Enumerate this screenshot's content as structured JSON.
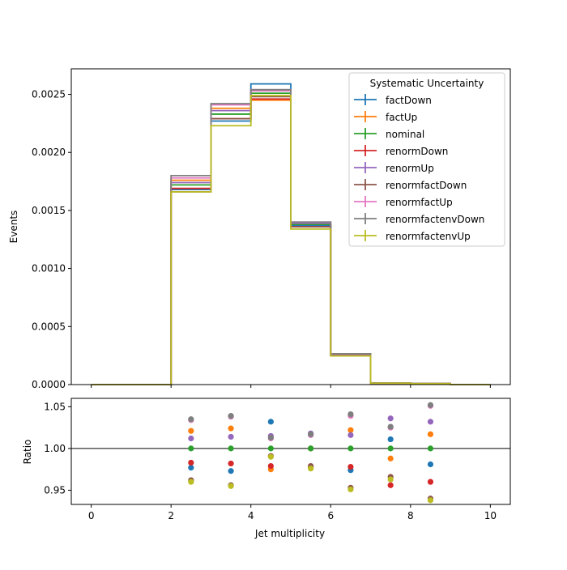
{
  "chart_data": [
    {
      "type": "line",
      "subtype": "step-histogram",
      "title": "",
      "xlabel": "",
      "ylabel": "Events",
      "xlim": [
        -0.5,
        10.5
      ],
      "ylim": [
        0,
        0.00272
      ],
      "yticks": [
        0.0,
        0.0005,
        0.001,
        0.0015,
        0.002,
        0.0025
      ],
      "ytick_labels": [
        "0.0000",
        "0.0005",
        "0.0010",
        "0.0015",
        "0.0020",
        "0.0025"
      ],
      "bin_edges": [
        0,
        1,
        2,
        3,
        4,
        5,
        6,
        7,
        8,
        9,
        10
      ],
      "legend": {
        "title": "Systematic Uncertainty",
        "position": "upper right"
      },
      "series": [
        {
          "name": "factDown",
          "color": "#1f77b4",
          "values": [
            0,
            0,
            0.00168,
            0.00227,
            0.00259,
            0.00137,
            0.00025,
            1.25e-05,
            8.7e-06,
            0
          ]
        },
        {
          "name": "factUp",
          "color": "#ff7f0e",
          "values": [
            0,
            0,
            0.00176,
            0.00238,
            0.00245,
            0.00138,
            0.00026,
            1.23e-05,
            9e-06,
            0
          ]
        },
        {
          "name": "nominal",
          "color": "#2ca02c",
          "values": [
            0,
            0,
            0.00172,
            0.00233,
            0.00251,
            0.00138,
            0.00026,
            1.25e-05,
            8.8e-06,
            0
          ]
        },
        {
          "name": "renormDown",
          "color": "#d62728",
          "values": [
            0,
            0,
            0.00169,
            0.00229,
            0.00246,
            0.00136,
            0.000255,
            1.2e-05,
            8.5e-06,
            0
          ]
        },
        {
          "name": "renormUp",
          "color": "#9467bd",
          "values": [
            0,
            0,
            0.00174,
            0.00236,
            0.00254,
            0.00139,
            0.000262,
            1.29e-05,
            9.1e-06,
            0
          ]
        },
        {
          "name": "renormfactDown",
          "color": "#8c564b",
          "values": [
            0,
            0,
            0.00166,
            0.00229,
            0.00248,
            0.00136,
            0.000248,
            1.21e-05,
            8.3e-06,
            0
          ]
        },
        {
          "name": "renormfactUp",
          "color": "#e377c2",
          "values": [
            0,
            0,
            0.00178,
            0.00241,
            0.00253,
            0.0014,
            0.000265,
            1.28e-05,
            9.3e-06,
            0
          ]
        },
        {
          "name": "renormfactenvDown",
          "color": "#7f7f7f",
          "values": [
            0,
            0,
            0.0018,
            0.00242,
            0.00254,
            0.0014,
            0.000266,
            1.28e-05,
            9.3e-06,
            0
          ]
        },
        {
          "name": "renormfactenvUp",
          "color": "#bcbd22",
          "values": [
            0,
            0,
            0.00166,
            0.00223,
            0.00249,
            0.00134,
            0.000247,
            1.2e-05,
            8.3e-06,
            0
          ]
        }
      ]
    },
    {
      "type": "scatter",
      "title": "",
      "xlabel": "Jet multiplicity",
      "ylabel": "Ratio",
      "xlim": [
        -0.5,
        10.5
      ],
      "ylim": [
        0.933,
        1.06
      ],
      "xticks": [
        0,
        2,
        4,
        6,
        8,
        10
      ],
      "xtick_labels": [
        "0",
        "2",
        "4",
        "6",
        "8",
        "10"
      ],
      "yticks": [
        0.95,
        1.0,
        1.05
      ],
      "ytick_labels": [
        "0.95",
        "1.00",
        "1.05"
      ],
      "reference_line": 1.0,
      "x": [
        2.5,
        3.5,
        4.5,
        5.5,
        6.5,
        7.5,
        8.5
      ],
      "series": [
        {
          "name": "factDown",
          "color": "#1f77b4",
          "values": [
            0.977,
            0.973,
            1.032,
            1.0,
            0.974,
            1.011,
            0.981
          ]
        },
        {
          "name": "factUp",
          "color": "#ff7f0e",
          "values": [
            1.021,
            1.024,
            0.975,
            1.0,
            1.022,
            0.988,
            1.017
          ]
        },
        {
          "name": "nominal",
          "color": "#2ca02c",
          "values": [
            1.0,
            1.0,
            1.0,
            1.0,
            1.0,
            1.0,
            1.0
          ]
        },
        {
          "name": "renormDown",
          "color": "#d62728",
          "values": [
            0.983,
            0.982,
            0.979,
            0.978,
            0.978,
            0.956,
            0.96
          ]
        },
        {
          "name": "renormUp",
          "color": "#9467bd",
          "values": [
            1.012,
            1.014,
            1.015,
            1.018,
            1.016,
            1.036,
            1.032
          ]
        },
        {
          "name": "renormfactDown",
          "color": "#8c564b",
          "values": [
            0.962,
            0.956,
            0.991,
            0.979,
            0.953,
            0.966,
            0.94
          ]
        },
        {
          "name": "renormfactUp",
          "color": "#e377c2",
          "values": [
            1.034,
            1.038,
            1.012,
            1.016,
            1.039,
            1.025,
            1.051
          ]
        },
        {
          "name": "renormfactenvDown",
          "color": "#7f7f7f",
          "values": [
            1.035,
            1.039,
            1.013,
            1.017,
            1.041,
            1.026,
            1.052
          ]
        },
        {
          "name": "renormfactenvUp",
          "color": "#bcbd22",
          "values": [
            0.96,
            0.955,
            0.99,
            0.976,
            0.951,
            0.963,
            0.938
          ]
        }
      ]
    }
  ]
}
